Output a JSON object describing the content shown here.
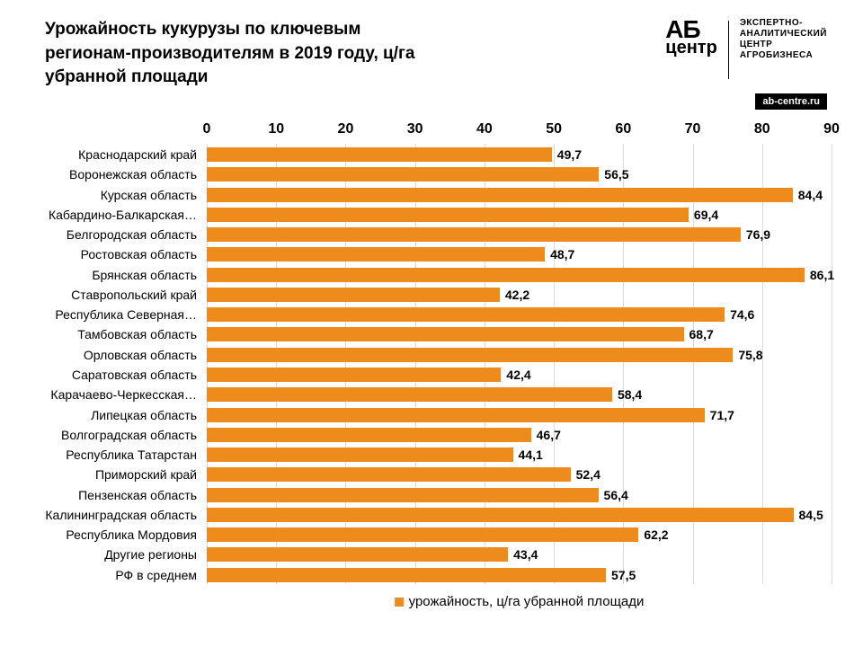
{
  "title": "Урожайность кукурузы по ключевым регионам-производителям в 2019 году, ц/га убранной площади",
  "logo": {
    "ab": "АБ",
    "centr": "центр",
    "tagline_l1": "ЭКСПЕРТНО-",
    "tagline_l2": "АНАЛИТИЧЕСКИЙ",
    "tagline_l3": "ЦЕНТР",
    "tagline_l4": "АГРОБИЗНЕСА",
    "url": "ab-centre.ru"
  },
  "chart": {
    "type": "bar-horizontal",
    "xlim": [
      0,
      90
    ],
    "xtick_step": 10,
    "xticks": [
      0,
      10,
      20,
      30,
      40,
      50,
      60,
      70,
      80,
      90
    ],
    "categories": [
      "Краснодарский край",
      "Воронежская область",
      "Курская область",
      "Кабардино-Балкарская…",
      "Белгородская область",
      "Ростовская область",
      "Брянская область",
      "Ставропольский край",
      "Республика Северная…",
      "Тамбовская область",
      "Орловская область",
      "Саратовская область",
      "Карачаево-Черкесская…",
      "Липецкая область",
      "Волгоградская область",
      "Республика Татарстан",
      "Приморский край",
      "Пензенская область",
      "Калининградская область",
      "Республика Мордовия",
      "Другие регионы",
      "РФ в среднем"
    ],
    "values": [
      49.7,
      56.5,
      84.4,
      69.4,
      76.9,
      48.7,
      86.1,
      42.2,
      74.6,
      68.7,
      75.8,
      42.4,
      58.4,
      71.7,
      46.7,
      44.1,
      52.4,
      56.4,
      84.5,
      62.2,
      43.4,
      57.5
    ],
    "value_labels": [
      "49,7",
      "56,5",
      "84,4",
      "69,4",
      "76,9",
      "48,7",
      "86,1",
      "42,2",
      "74,6",
      "68,7",
      "75,8",
      "42,4",
      "58,4",
      "71,7",
      "46,7",
      "44,1",
      "52,4",
      "56,4",
      "84,5",
      "62,2",
      "43,4",
      "57,5"
    ],
    "bar_color": "#ed8b1c",
    "grid_color": "#d9d9d9",
    "background_color": "#ffffff",
    "label_fontsize": 14,
    "axis_fontsize": 16,
    "title_fontsize": 19,
    "legend_label": "урожайность, ц/га убранной площади"
  }
}
